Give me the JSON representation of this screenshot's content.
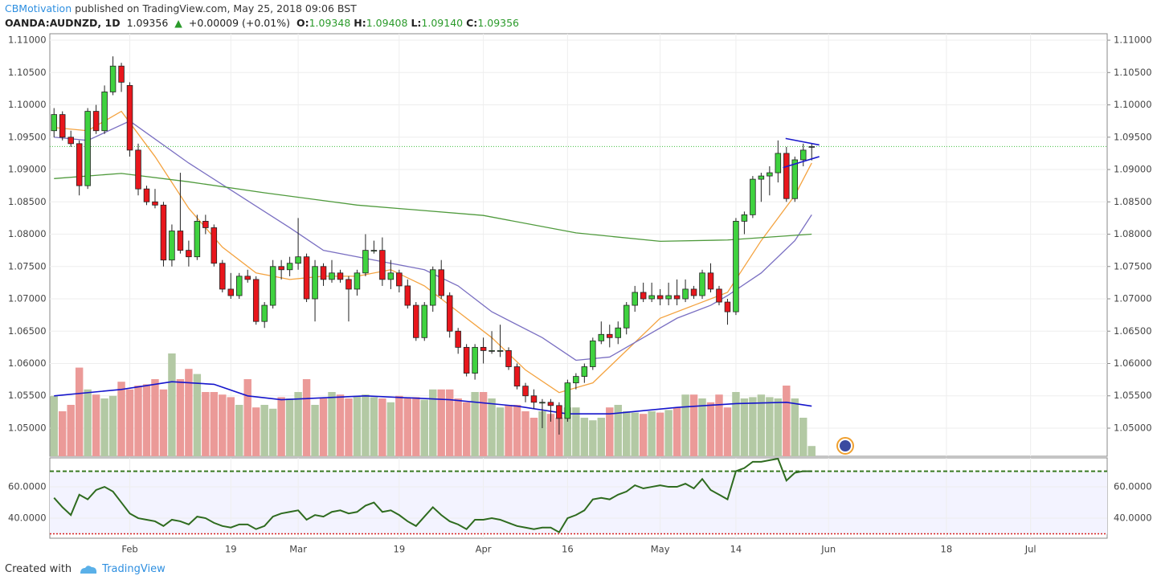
{
  "header": {
    "author": "CBMotivation",
    "published": "published on TradingView.com, May 25, 2018 09:06 BST",
    "symbol": "OANDA:AUDNZD, 1D",
    "price": "1.09356",
    "arrow": "▲",
    "change": "+0.00009 (+0.01%)",
    "quote": [
      {
        "label": "O:",
        "value": "1.09348"
      },
      {
        "label": "H:",
        "value": "1.09408"
      },
      {
        "label": "L:",
        "value": "1.09140"
      },
      {
        "label": "C:",
        "value": "1.09356"
      }
    ]
  },
  "footer": {
    "created": "Created with",
    "brand": "TradingView"
  },
  "chart_data": {
    "type": "candlestick",
    "x": [
      0,
      1,
      2,
      3,
      4,
      5,
      6,
      7,
      8,
      9,
      10,
      11,
      12,
      13,
      14,
      15,
      16,
      17,
      18,
      19,
      20,
      21,
      22,
      23,
      24,
      25,
      26,
      27,
      28,
      29,
      30,
      31,
      32,
      33,
      34,
      35,
      36,
      37,
      38,
      39,
      40,
      41,
      42,
      43,
      44,
      45,
      46,
      47,
      48,
      49,
      50,
      51,
      52,
      53,
      54,
      55,
      56,
      57,
      58,
      59,
      60,
      61,
      62,
      63,
      64,
      65,
      66,
      67,
      68,
      69,
      70,
      71,
      72,
      73,
      74,
      75,
      76,
      77,
      78,
      79,
      80,
      81,
      82,
      83,
      84,
      85,
      86,
      87,
      88,
      89,
      90
    ],
    "open": [
      1.096,
      1.0985,
      1.095,
      1.094,
      1.0875,
      1.099,
      1.096,
      1.102,
      1.106,
      1.103,
      1.093,
      1.087,
      1.085,
      1.0845,
      1.076,
      1.0805,
      1.0775,
      1.0765,
      1.082,
      1.081,
      1.0755,
      1.0715,
      1.0705,
      1.0735,
      1.073,
      1.0665,
      1.069,
      1.075,
      1.0745,
      1.0755,
      1.0765,
      1.07,
      1.075,
      1.073,
      1.074,
      1.073,
      1.0715,
      1.074,
      1.0775,
      1.0775,
      1.073,
      1.074,
      1.072,
      1.069,
      1.064,
      1.069,
      1.0745,
      1.0705,
      1.065,
      1.0625,
      1.0585,
      1.0625,
      1.062,
      1.062,
      1.062,
      1.0595,
      1.0565,
      1.055,
      1.054,
      1.054,
      1.0535,
      1.0515,
      1.057,
      1.058,
      1.0595,
      1.0635,
      1.0645,
      1.064,
      1.0655,
      1.069,
      1.071,
      1.07,
      1.0705,
      1.07,
      1.0705,
      1.07,
      1.0715,
      1.0705,
      1.074,
      1.0715,
      1.0695,
      1.068,
      1.082,
      1.083,
      1.0885,
      1.089,
      1.0895,
      1.0925,
      1.0855,
      1.0915,
      1.09348
    ],
    "high": [
      1.0995,
      1.099,
      1.096,
      1.0945,
      1.0995,
      1.1,
      1.103,
      1.1075,
      1.1065,
      1.1035,
      1.094,
      1.0875,
      1.087,
      1.085,
      1.0815,
      1.0895,
      1.079,
      1.083,
      1.083,
      1.0815,
      1.076,
      1.074,
      1.074,
      1.0745,
      1.0735,
      1.0695,
      1.076,
      1.076,
      1.0765,
      1.0825,
      1.077,
      1.076,
      1.0755,
      1.076,
      1.0745,
      1.0735,
      1.0745,
      1.08,
      1.079,
      1.0795,
      1.076,
      1.0745,
      1.073,
      1.0695,
      1.0695,
      1.075,
      1.076,
      1.071,
      1.0655,
      1.063,
      1.063,
      1.064,
      1.065,
      1.066,
      1.0625,
      1.06,
      1.057,
      1.056,
      1.0545,
      1.0545,
      1.054,
      1.0575,
      1.0585,
      1.06,
      1.064,
      1.0665,
      1.066,
      1.0665,
      1.0695,
      1.072,
      1.0725,
      1.0725,
      1.0715,
      1.0725,
      1.073,
      1.073,
      1.072,
      1.0745,
      1.0755,
      1.072,
      1.07,
      1.0825,
      1.0835,
      1.089,
      1.0895,
      1.0905,
      1.0945,
      1.0935,
      1.092,
      1.094,
      1.09408
    ],
    "low": [
      1.095,
      1.0945,
      1.0935,
      1.086,
      1.087,
      1.0955,
      1.0955,
      1.1015,
      1.102,
      1.092,
      1.086,
      1.0845,
      1.084,
      1.075,
      1.075,
      1.077,
      1.075,
      1.076,
      1.08,
      1.075,
      1.071,
      1.07,
      1.07,
      1.0725,
      1.066,
      1.0655,
      1.0685,
      1.073,
      1.0735,
      1.0745,
      1.0695,
      1.0665,
      1.072,
      1.0725,
      1.0725,
      1.0665,
      1.0705,
      1.0735,
      1.077,
      1.072,
      1.0715,
      1.071,
      1.0685,
      1.0635,
      1.0635,
      1.068,
      1.07,
      1.064,
      1.0615,
      1.058,
      1.0575,
      1.06,
      1.0615,
      1.061,
      1.059,
      1.056,
      1.054,
      1.053,
      1.05,
      1.051,
      1.049,
      1.051,
      1.056,
      1.057,
      1.059,
      1.063,
      1.0625,
      1.063,
      1.0645,
      1.068,
      1.0695,
      1.0695,
      1.069,
      1.069,
      1.069,
      1.0695,
      1.07,
      1.07,
      1.071,
      1.069,
      1.066,
      1.0675,
      1.08,
      1.0825,
      1.085,
      1.086,
      1.088,
      1.085,
      1.085,
      1.0905,
      1.0914
    ],
    "close": [
      1.0985,
      1.095,
      1.094,
      1.0875,
      1.099,
      1.096,
      1.102,
      1.106,
      1.1035,
      1.093,
      1.087,
      1.085,
      1.0845,
      1.076,
      1.0805,
      1.0775,
      1.0765,
      1.082,
      1.081,
      1.0755,
      1.0715,
      1.0705,
      1.0735,
      1.073,
      1.0665,
      1.069,
      1.075,
      1.0745,
      1.0755,
      1.0765,
      1.07,
      1.075,
      1.073,
      1.074,
      1.073,
      1.0715,
      1.074,
      1.0775,
      1.0775,
      1.073,
      1.074,
      1.072,
      1.069,
      1.064,
      1.069,
      1.0745,
      1.0705,
      1.065,
      1.0625,
      1.0585,
      1.0625,
      1.062,
      1.062,
      1.062,
      1.0595,
      1.0565,
      1.055,
      1.054,
      1.054,
      1.0535,
      1.0515,
      1.057,
      1.058,
      1.0595,
      1.0635,
      1.0645,
      1.064,
      1.0655,
      1.069,
      1.071,
      1.07,
      1.0705,
      1.07,
      1.0705,
      1.07,
      1.0715,
      1.0705,
      1.074,
      1.0715,
      1.0695,
      1.068,
      1.082,
      1.083,
      1.0885,
      1.089,
      1.0895,
      1.0925,
      1.0855,
      1.0915,
      1.093,
      1.09356
    ],
    "up_color": "#3fd23f",
    "down_color": "#e8161c",
    "outline_color": "#222222",
    "xlim": [
      -0.5,
      125.1
    ],
    "xticks": [
      {
        "value": 9,
        "label": "Feb"
      },
      {
        "value": 21,
        "label": "19"
      },
      {
        "value": 29,
        "label": "Mar"
      },
      {
        "value": 41,
        "label": "19"
      },
      {
        "value": 51,
        "label": "Apr"
      },
      {
        "value": 61,
        "label": "16"
      },
      {
        "value": 72,
        "label": "May"
      },
      {
        "value": 81,
        "label": "14"
      },
      {
        "value": 92,
        "label": "Jun"
      },
      {
        "value": 106,
        "label": "18"
      },
      {
        "value": 116,
        "label": "Jul"
      }
    ],
    "ylim": [
      1.04565,
      1.111
    ],
    "yticks": [
      {
        "value": 1.05,
        "label": "1.05000"
      },
      {
        "value": 1.055,
        "label": "1.05500"
      },
      {
        "value": 1.06,
        "label": "1.06000"
      },
      {
        "value": 1.065,
        "label": "1.06500"
      },
      {
        "value": 1.07,
        "label": "1.07000"
      },
      {
        "value": 1.075,
        "label": "1.07500"
      },
      {
        "value": 1.08,
        "label": "1.08000"
      },
      {
        "value": 1.085,
        "label": "1.08500"
      },
      {
        "value": 1.09,
        "label": "1.09000"
      },
      {
        "value": 1.095,
        "label": "1.09500"
      },
      {
        "value": 1.1,
        "label": "1.10000"
      },
      {
        "value": 1.105,
        "label": "1.10500"
      },
      {
        "value": 1.11,
        "label": "1.11000"
      }
    ],
    "grid": true,
    "last_price_line": {
      "value": 1.09356,
      "color": "#3fbf3f"
    },
    "moving_averages": [
      {
        "color": "#f4a340",
        "x": [
          0,
          4,
          8,
          12,
          16,
          20,
          24,
          28,
          32,
          36,
          40,
          44,
          48,
          52,
          56,
          60,
          64,
          68,
          72,
          76,
          80,
          84,
          88,
          90
        ],
        "values": [
          1.0965,
          1.096,
          1.099,
          1.092,
          1.084,
          1.078,
          1.074,
          1.073,
          1.0735,
          1.0735,
          1.0745,
          1.072,
          1.068,
          1.064,
          1.059,
          1.0555,
          1.057,
          1.062,
          1.067,
          1.069,
          1.071,
          1.079,
          1.086,
          1.091
        ]
      },
      {
        "color": "#7a6fc2",
        "x": [
          0,
          4,
          9,
          16,
          22,
          28,
          32,
          40,
          44,
          48,
          52,
          58,
          62,
          66,
          70,
          74,
          78,
          80,
          84,
          88,
          90
        ],
        "values": [
          1.095,
          1.0945,
          1.0975,
          1.091,
          1.086,
          1.081,
          1.0775,
          1.0755,
          1.0745,
          1.072,
          1.068,
          1.064,
          1.0605,
          1.061,
          1.064,
          1.067,
          1.069,
          1.0705,
          1.074,
          1.079,
          1.083
        ]
      },
      {
        "color": "#4f9a3c",
        "x": [
          0,
          8,
          16,
          25,
          36,
          51,
          62,
          72,
          80,
          90
        ],
        "values": [
          1.0886,
          1.0894,
          1.0881,
          1.0864,
          1.0845,
          1.0829,
          1.0802,
          1.0789,
          1.0791,
          1.08
        ]
      }
    ],
    "trendlines": {
      "color": "#1a1acc",
      "lines": [
        {
          "x": [
            86.9,
            90.9
          ],
          "values": [
            1.0948,
            1.0938
          ]
        },
        {
          "x": [
            86.6,
            90.9
          ],
          "values": [
            1.0903,
            1.092
          ]
        }
      ]
    },
    "volume": {
      "ylim": [
        0,
        100
      ],
      "up_color": "#b3c9a4",
      "down_color": "#eb9a98",
      "values": [
        47,
        35,
        40,
        69,
        52,
        48,
        45,
        47,
        58,
        52,
        55,
        56,
        60,
        52,
        80,
        60,
        68,
        64,
        50,
        50,
        48,
        46,
        40,
        60,
        38,
        40,
        37,
        46,
        45,
        50,
        60,
        40,
        45,
        50,
        48,
        45,
        47,
        48,
        46,
        45,
        42,
        47,
        45,
        46,
        44,
        52,
        52,
        52,
        45,
        42,
        50,
        50,
        45,
        38,
        40,
        40,
        35,
        30,
        35,
        33,
        30,
        38,
        38,
        30,
        28,
        30,
        38,
        40,
        35,
        34,
        33,
        35,
        34,
        36,
        38,
        48,
        48,
        45,
        42,
        48,
        38,
        50,
        45,
        46,
        48,
        46,
        45,
        55,
        45,
        30,
        8
      ],
      "ma": {
        "color": "#1515cc",
        "x": [
          0,
          8,
          14,
          19,
          23,
          27,
          37,
          47,
          55,
          61,
          66,
          74,
          81,
          87,
          90
        ],
        "values": [
          47,
          52,
          58,
          56,
          47,
          44,
          47,
          44,
          39,
          33,
          33,
          38,
          41,
          42,
          39
        ]
      }
    },
    "rsi": {
      "color": "#2e6b1f",
      "ylim": [
        27.2,
        78.5
      ],
      "yticks": [
        {
          "value": 60,
          "label": "60.0000"
        },
        {
          "value": 40,
          "label": "40.0000"
        }
      ],
      "upper": 70,
      "lower": 30,
      "upper_color": "#3a7a22",
      "lower_color": "#d62020",
      "band_color": "#f3f3ff",
      "values": [
        53,
        47,
        42,
        55,
        52,
        58,
        60,
        57,
        50,
        43,
        40,
        39,
        38,
        35,
        39,
        38,
        36,
        41,
        40,
        37,
        35,
        34,
        36,
        36,
        33,
        35,
        41,
        43,
        44,
        45,
        39,
        42,
        41,
        44,
        45,
        43,
        44,
        48,
        50,
        44,
        45,
        42,
        38,
        35,
        41,
        47,
        42,
        38,
        36,
        33,
        39,
        39,
        40,
        39,
        37,
        35,
        34,
        33,
        34,
        34,
        31,
        40,
        42,
        45,
        52,
        53,
        52,
        55,
        57,
        61,
        59,
        60,
        61,
        60,
        60,
        62,
        59,
        65,
        58,
        55,
        52,
        70,
        72,
        76,
        76,
        77,
        78,
        64,
        69,
        70,
        70
      ]
    }
  }
}
